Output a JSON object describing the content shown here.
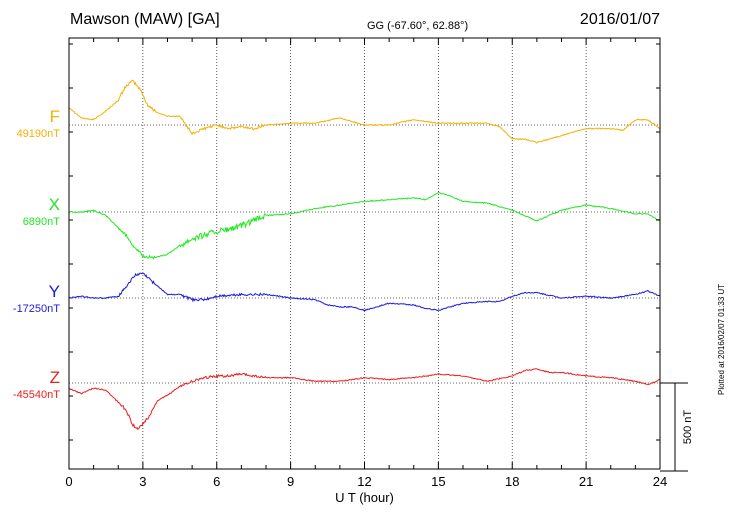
{
  "header": {
    "station": "Mawson (MAW)  [GA]",
    "coords": "GG (-67.60°,  62.88°)",
    "date": "2016/01/07"
  },
  "plotted_note": "Plotted at 2016/02/07 01:33 UT",
  "chart_data": {
    "type": "line",
    "xlabel": "U T (hour)",
    "xlim": [
      0,
      24
    ],
    "xticks": [
      "0",
      "3",
      "6",
      "9",
      "12",
      "15",
      "18",
      "21",
      "24"
    ],
    "scale_label": "500 nT",
    "scale_nT": 500,
    "grid": true,
    "series": [
      {
        "name": "F",
        "base_label": "49190nT",
        "baseline_nT": 49190,
        "color": "#f5b000",
        "x": [
          0,
          0.5,
          1,
          1.5,
          2,
          2.3,
          2.6,
          2.9,
          3.2,
          3.6,
          4,
          4.5,
          5,
          5.5,
          6,
          6.5,
          7,
          7.5,
          8,
          9,
          10,
          11,
          12,
          13,
          14,
          15,
          16,
          17,
          17.5,
          18,
          18.5,
          19,
          19.5,
          20,
          21,
          22,
          22.5,
          23,
          23.5,
          24
        ],
        "y": [
          49290,
          49230,
          49220,
          49270,
          49330,
          49410,
          49440,
          49390,
          49300,
          49260,
          49240,
          49240,
          49140,
          49170,
          49190,
          49170,
          49180,
          49170,
          49190,
          49200,
          49200,
          49230,
          49190,
          49190,
          49220,
          49200,
          49200,
          49200,
          49180,
          49110,
          49110,
          49090,
          49110,
          49130,
          49170,
          49170,
          49160,
          49220,
          49220,
          49170
        ]
      },
      {
        "name": "X",
        "base_label": "6890nT",
        "baseline_nT": 6890,
        "color": "#22e822",
        "x": [
          0,
          0.5,
          1,
          1.5,
          2,
          2.3,
          2.6,
          3,
          3.5,
          4,
          4.5,
          5,
          5.5,
          6,
          6.5,
          7,
          7.5,
          8,
          9,
          10,
          11,
          12,
          13,
          14,
          14.5,
          15,
          15.5,
          16,
          17,
          18,
          18.5,
          19,
          19.5,
          20,
          21,
          22,
          23,
          23.5,
          24
        ],
        "y": [
          6890,
          6890,
          6900,
          6870,
          6800,
          6760,
          6700,
          6640,
          6630,
          6650,
          6700,
          6740,
          6760,
          6780,
          6790,
          6810,
          6840,
          6870,
          6880,
          6910,
          6930,
          6950,
          6960,
          6970,
          6960,
          7000,
          6980,
          6950,
          6940,
          6900,
          6870,
          6840,
          6870,
          6900,
          6930,
          6910,
          6880,
          6880,
          6840
        ]
      },
      {
        "name": "Y",
        "base_label": "-17250nT",
        "baseline_nT": -17250,
        "color": "#1a1ae0",
        "x": [
          0,
          0.5,
          1,
          1.5,
          2,
          2.4,
          2.7,
          3,
          3.5,
          4,
          4.5,
          5,
          5.5,
          6,
          7,
          8,
          9,
          10,
          10.5,
          11,
          11.5,
          12,
          12.5,
          13,
          14,
          14.5,
          15,
          15.5,
          16,
          17,
          17.5,
          18,
          18.5,
          19,
          20,
          21,
          22,
          23,
          23.5,
          24
        ],
        "y": [
          -17250,
          -17240,
          -17250,
          -17250,
          -17240,
          -17170,
          -17120,
          -17110,
          -17170,
          -17230,
          -17230,
          -17260,
          -17260,
          -17240,
          -17230,
          -17230,
          -17250,
          -17260,
          -17290,
          -17300,
          -17300,
          -17320,
          -17300,
          -17280,
          -17290,
          -17310,
          -17320,
          -17300,
          -17280,
          -17270,
          -17270,
          -17240,
          -17220,
          -17220,
          -17250,
          -17240,
          -17250,
          -17230,
          -17210,
          -17240
        ]
      },
      {
        "name": "Z",
        "base_label": "-45540nT",
        "baseline_nT": -45540,
        "color": "#ee1c1c",
        "x": [
          0,
          0.5,
          1,
          1.5,
          2,
          2.3,
          2.6,
          2.8,
          3.2,
          3.6,
          4,
          4.5,
          5,
          5.5,
          6,
          6.5,
          7,
          7.5,
          8,
          9,
          10,
          11,
          12,
          13,
          14,
          15,
          16,
          17,
          18,
          18.5,
          19,
          19.5,
          20,
          21,
          22,
          23,
          23.5,
          24
        ],
        "y": [
          -45570,
          -45600,
          -45570,
          -45580,
          -45650,
          -45690,
          -45780,
          -45800,
          -45740,
          -45640,
          -45610,
          -45560,
          -45530,
          -45510,
          -45500,
          -45500,
          -45490,
          -45500,
          -45510,
          -45510,
          -45530,
          -45530,
          -45510,
          -45520,
          -45510,
          -45490,
          -45500,
          -45530,
          -45500,
          -45470,
          -45460,
          -45480,
          -45480,
          -45500,
          -45510,
          -45530,
          -45550,
          -45520
        ]
      }
    ]
  }
}
